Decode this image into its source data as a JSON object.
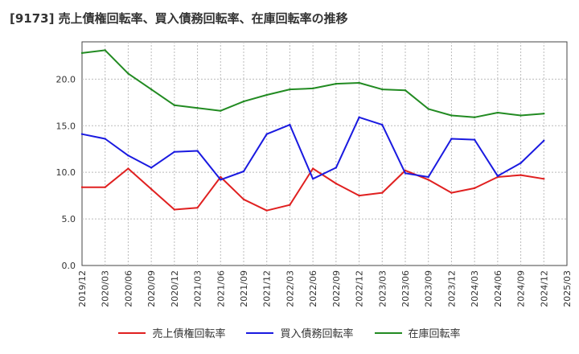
{
  "chart_data": {
    "type": "line",
    "title": "[9173]  売上債権回転率、買入債務回転率、在庫回転率の推移",
    "xlabel": "",
    "ylabel": "",
    "ylim": [
      0,
      24
    ],
    "yticks": [
      0,
      5,
      10,
      15,
      20
    ],
    "ytick_labels": [
      "0.0",
      "5.0",
      "10.0",
      "15.0",
      "20.0"
    ],
    "grid": true,
    "legend_position": "bottom",
    "x_tick_labels": [
      "2019/12",
      "2020/03",
      "2020/06",
      "2020/09",
      "2020/12",
      "2021/03",
      "2021/06",
      "2021/09",
      "2021/12",
      "2022/03",
      "2022/06",
      "2022/09",
      "2022/12",
      "2023/03",
      "2023/06",
      "2023/09",
      "2023/12",
      "2024/03",
      "2024/06",
      "2024/09",
      "2024/12",
      "2025/03"
    ],
    "series": [
      {
        "name": "売上債権回転率",
        "color": "#e02020",
        "x": [
          0,
          1,
          2,
          3,
          4,
          5,
          6,
          7,
          8,
          9,
          10,
          11,
          12,
          13,
          14,
          15,
          16,
          17,
          18,
          19,
          20
        ],
        "values": [
          8.4,
          8.4,
          10.4,
          8.2,
          6.0,
          6.2,
          9.5,
          7.1,
          5.9,
          6.5,
          10.4,
          8.8,
          7.5,
          7.8,
          10.2,
          9.2,
          7.8,
          8.3,
          9.5,
          9.7,
          9.3
        ]
      },
      {
        "name": "買入債務回転率",
        "color": "#1a1ae0",
        "x": [
          0,
          1,
          2,
          3,
          4,
          5,
          6,
          7,
          8,
          9,
          10,
          11,
          12,
          13,
          14,
          15,
          16,
          17,
          18,
          19,
          20
        ],
        "values": [
          14.1,
          13.6,
          11.8,
          10.5,
          12.2,
          12.3,
          9.2,
          10.1,
          14.1,
          15.1,
          9.3,
          10.5,
          15.9,
          15.1,
          9.9,
          9.5,
          13.6,
          13.5,
          9.6,
          11.0,
          13.4
        ]
      },
      {
        "name": "在庫回転率",
        "color": "#228b22",
        "x": [
          0,
          1,
          2,
          3,
          4,
          5,
          6,
          7,
          8,
          9,
          10,
          11,
          12,
          13,
          14,
          15,
          16,
          17,
          18,
          19,
          20
        ],
        "values": [
          22.8,
          23.1,
          20.6,
          18.9,
          17.2,
          16.9,
          16.6,
          17.6,
          18.3,
          18.9,
          19.0,
          19.5,
          19.6,
          18.9,
          18.8,
          16.8,
          16.1,
          15.9,
          16.4,
          16.1,
          16.3
        ]
      }
    ]
  }
}
